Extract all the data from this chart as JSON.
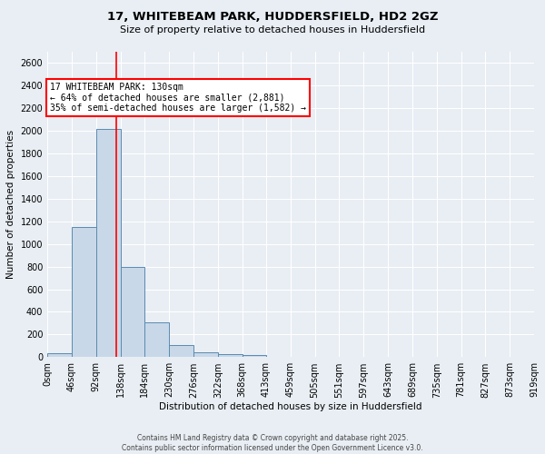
{
  "title1": "17, WHITEBEAM PARK, HUDDERSFIELD, HD2 2GZ",
  "title2": "Size of property relative to detached houses in Huddersfield",
  "xlabel": "Distribution of detached houses by size in Huddersfield",
  "ylabel": "Number of detached properties",
  "bin_edges": [
    0,
    46,
    92,
    138,
    184,
    230,
    276,
    322,
    368,
    413,
    459,
    505,
    551,
    597,
    643,
    689,
    735,
    781,
    827,
    873,
    919
  ],
  "bar_heights": [
    35,
    1150,
    2020,
    795,
    305,
    105,
    45,
    30,
    20,
    0,
    0,
    0,
    0,
    0,
    0,
    0,
    0,
    0,
    0,
    0
  ],
  "bar_color": "#c8d8e8",
  "bar_edge_color": "#5a8ab0",
  "property_line_x": 130,
  "property_line_color": "red",
  "ylim": [
    0,
    2700
  ],
  "yticks": [
    0,
    200,
    400,
    600,
    800,
    1000,
    1200,
    1400,
    1600,
    1800,
    2000,
    2200,
    2400,
    2600
  ],
  "annotation_text": "17 WHITEBEAM PARK: 130sqm\n← 64% of detached houses are smaller (2,881)\n35% of semi-detached houses are larger (1,582) →",
  "annotation_box_color": "white",
  "annotation_box_edge_color": "red",
  "footer1": "Contains HM Land Registry data © Crown copyright and database right 2025.",
  "footer2": "Contains public sector information licensed under the Open Government Licence v3.0.",
  "background_color": "#e8eef4",
  "plot_bg_color": "#e8eef4",
  "grid_color": "white",
  "title1_fontsize": 9.5,
  "title2_fontsize": 8.0,
  "xlabel_fontsize": 7.5,
  "ylabel_fontsize": 7.5,
  "tick_fontsize": 7.0,
  "annot_fontsize": 7.0,
  "footer_fontsize": 5.5
}
